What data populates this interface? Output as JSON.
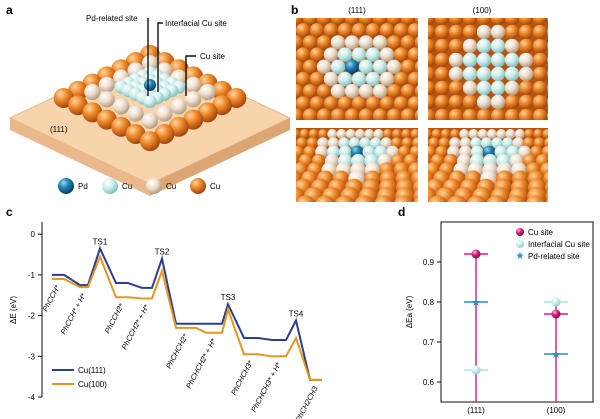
{
  "panels": {
    "a": {
      "letter": "a",
      "callouts": [
        "Pd-related site",
        "Interfacial Cu site",
        "Cu site"
      ],
      "surface_label": "(111)",
      "legend": [
        {
          "label": "Pd",
          "color": "#1f86b8"
        },
        {
          "label": "Cu",
          "color": "#c9ece9"
        },
        {
          "label": "Cu",
          "color": "#ead8c3"
        },
        {
          "label": "Cu",
          "color": "#e27a1f"
        }
      ]
    },
    "b": {
      "letter": "b",
      "facets": [
        "(111)",
        "(100)"
      ]
    },
    "c": {
      "letter": "c",
      "ylabel": "ΔE (eV)",
      "yticks": [
        "0",
        "-1",
        "-2",
        "-3",
        "-4"
      ],
      "ts_labels": [
        "TS1",
        "TS2",
        "TS3",
        "TS4"
      ],
      "species": [
        "PhCCH*",
        "PhCCH* + H*",
        "PhCCH2*",
        "PhCCH2* + H*",
        "PhCHCH2*",
        "PhCHCH2* + H*",
        "PhCHCH3*",
        "PhCHCH3* + H*",
        "PhCH2CH3"
      ],
      "legend": [
        "Cu(111)",
        "Cu(100)"
      ]
    },
    "d": {
      "letter": "d",
      "ylabel": "ΔEa (eV)",
      "yticks": [
        "0.9",
        "0.8",
        "0.7",
        "0.6"
      ],
      "xticks": [
        "(111)",
        "(100)"
      ],
      "legend": [
        "Cu site",
        "Interfacial Cu site",
        "Pd-related site"
      ]
    }
  },
  "chart_data": [
    {
      "type": "line",
      "title": "",
      "xlabel": "",
      "ylabel": "ΔE (eV)",
      "ylim": [
        -4,
        0.3
      ],
      "categories": [
        "PhCCH*",
        "PhCCH* + H*",
        "TS1",
        "PhCCH2*",
        "PhCCH2* + H*",
        "TS2",
        "PhCHCH2*",
        "PhCHCH2* + H*",
        "TS3",
        "PhCHCH3*",
        "PhCHCH3* + H*",
        "TS4",
        "PhCH2CH3"
      ],
      "series": [
        {
          "name": "Cu(111)",
          "color": "#2c3e8f",
          "values": [
            -1.0,
            -1.25,
            -0.35,
            -1.2,
            -1.32,
            -0.6,
            -2.2,
            -2.2,
            -1.72,
            -2.55,
            -2.6,
            -2.12,
            -3.58
          ]
        },
        {
          "name": "Cu(100)",
          "color": "#e8961e",
          "values": [
            -1.1,
            -1.3,
            -0.55,
            -1.55,
            -1.58,
            -0.9,
            -2.3,
            -2.42,
            -1.85,
            -2.95,
            -3.0,
            -2.55,
            -3.58
          ]
        }
      ]
    },
    {
      "type": "scatter",
      "title": "",
      "ylabel": "ΔEa (eV)",
      "ylim": [
        0.6,
        1.0
      ],
      "categories": [
        "(111)",
        "(100)"
      ],
      "series": [
        {
          "name": "Cu site",
          "color": "#d81b7a",
          "values": [
            0.92,
            0.77
          ]
        },
        {
          "name": "Interfacial Cu site",
          "color": "#a9e4e0",
          "values": [
            0.63,
            0.8
          ]
        },
        {
          "name": "Pd-related site",
          "color": "#2a8fc4",
          "values": [
            0.8,
            0.67
          ]
        }
      ]
    }
  ]
}
